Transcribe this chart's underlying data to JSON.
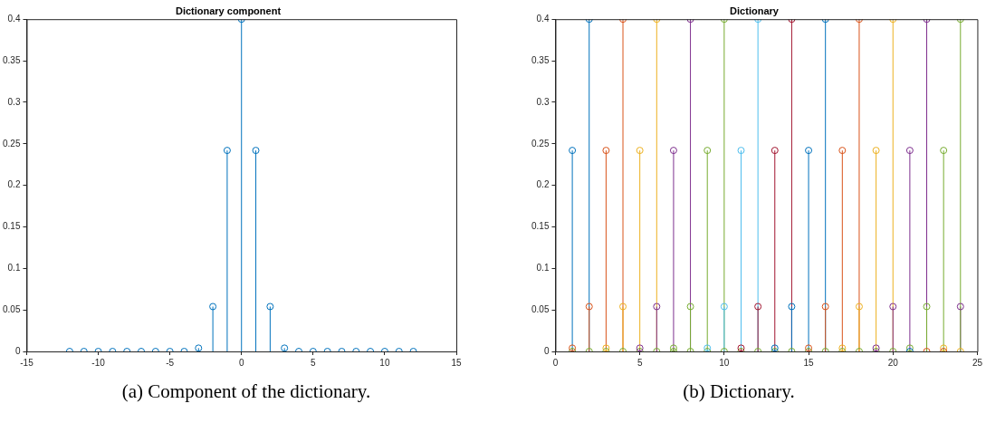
{
  "chart_data": [
    {
      "type": "lollipop",
      "title": "Dictionary component",
      "x": [
        -12,
        -11,
        -10,
        -9,
        -8,
        -7,
        -6,
        -5,
        -4,
        -3,
        -2,
        -1,
        0,
        1,
        2,
        3,
        4,
        5,
        6,
        7,
        8,
        9,
        10,
        11,
        12
      ],
      "values": [
        0,
        0,
        0,
        0,
        0,
        0,
        0,
        0,
        0,
        0.004,
        0.054,
        0.242,
        0.4,
        0.242,
        0.054,
        0.004,
        0,
        0,
        0,
        0,
        0,
        0,
        0,
        0,
        0
      ],
      "color": "#0072bd",
      "marker": "circle",
      "grid": false,
      "legend": false,
      "xlim": [
        -15,
        15
      ],
      "xticks": [
        -15,
        -10,
        -5,
        0,
        5,
        10,
        15
      ],
      "ylim": [
        0,
        0.4
      ],
      "yticks": [
        0,
        0.05,
        0.1,
        0.15,
        0.2,
        0.25,
        0.3,
        0.35,
        0.4
      ],
      "annotations": [
        "(a) Component of the dictionary."
      ]
    },
    {
      "type": "lollipop",
      "title": "Dictionary",
      "x": [
        1,
        2,
        3,
        4,
        5,
        6,
        7,
        8,
        9,
        10,
        11,
        12,
        13,
        14,
        15,
        16,
        17,
        18,
        19,
        20,
        21,
        22,
        23,
        24
      ],
      "series": [
        {
          "color": "#0072bd",
          "values": [
            0.242,
            0.4,
            null,
            null,
            null,
            null,
            null,
            null,
            null,
            null,
            null,
            null,
            null,
            null,
            null,
            null,
            null,
            null,
            null,
            null,
            null,
            null,
            null,
            null
          ]
        },
        {
          "color": "#d95319",
          "values": [
            0.004,
            0.054,
            0.242,
            0.4,
            null,
            null,
            null,
            null,
            null,
            null,
            null,
            null,
            null,
            null,
            null,
            null,
            null,
            null,
            null,
            null,
            null,
            null,
            null,
            null
          ]
        },
        {
          "color": "#edb120",
          "values": [
            null,
            null,
            0.004,
            0.054,
            0.242,
            0.4,
            null,
            null,
            null,
            null,
            null,
            null,
            null,
            null,
            null,
            null,
            null,
            null,
            null,
            null,
            null,
            null,
            null,
            null
          ]
        },
        {
          "color": "#7e2f8e",
          "values": [
            null,
            null,
            null,
            null,
            0.004,
            0.054,
            0.242,
            0.4,
            null,
            null,
            null,
            null,
            null,
            null,
            null,
            null,
            null,
            null,
            null,
            null,
            null,
            null,
            null,
            null
          ]
        },
        {
          "color": "#77ac30",
          "values": [
            null,
            null,
            null,
            null,
            null,
            null,
            0.004,
            0.054,
            0.242,
            0.4,
            null,
            null,
            null,
            null,
            null,
            null,
            null,
            null,
            null,
            null,
            null,
            null,
            null,
            null
          ]
        },
        {
          "color": "#4dbeee",
          "values": [
            null,
            null,
            null,
            null,
            null,
            null,
            null,
            null,
            0.004,
            0.054,
            0.242,
            0.4,
            null,
            null,
            null,
            null,
            null,
            null,
            null,
            null,
            null,
            null,
            null,
            null
          ]
        },
        {
          "color": "#a2142f",
          "values": [
            null,
            null,
            null,
            null,
            null,
            null,
            null,
            null,
            null,
            null,
            0.004,
            0.054,
            0.242,
            0.4,
            null,
            null,
            null,
            null,
            null,
            null,
            null,
            null,
            null,
            null
          ]
        },
        {
          "color": "#0072bd",
          "values": [
            null,
            null,
            null,
            null,
            null,
            null,
            null,
            null,
            null,
            null,
            null,
            null,
            0.004,
            0.054,
            0.242,
            0.4,
            null,
            null,
            null,
            null,
            0,
            null,
            null,
            null
          ]
        },
        {
          "color": "#d95319",
          "values": [
            null,
            null,
            null,
            null,
            null,
            null,
            null,
            null,
            null,
            null,
            null,
            null,
            null,
            null,
            0.004,
            0.054,
            0.242,
            0.4,
            null,
            null,
            null,
            0,
            0,
            null
          ]
        },
        {
          "color": "#edb120",
          "values": [
            null,
            null,
            null,
            null,
            null,
            null,
            null,
            null,
            null,
            null,
            null,
            null,
            null,
            null,
            null,
            null,
            0.004,
            0.054,
            0.242,
            0.4,
            null,
            null,
            0.004,
            0
          ]
        },
        {
          "color": "#7e2f8e",
          "values": [
            null,
            null,
            null,
            null,
            null,
            null,
            null,
            null,
            null,
            null,
            null,
            null,
            null,
            null,
            null,
            null,
            null,
            null,
            0.004,
            0.054,
            0.242,
            0.4,
            null,
            0.054
          ]
        },
        {
          "color": "#77ac30",
          "values": [
            0,
            0,
            0,
            0,
            0,
            0,
            0,
            0,
            0,
            0,
            0,
            0,
            0,
            0,
            0,
            0,
            0,
            0,
            0,
            0,
            0.004,
            0.054,
            0.242,
            0.4
          ]
        }
      ],
      "marker": "circle",
      "grid": false,
      "legend": false,
      "xlim": [
        0,
        25
      ],
      "xticks": [
        0,
        5,
        10,
        15,
        20,
        25
      ],
      "ylim": [
        0,
        0.4
      ],
      "yticks": [
        0,
        0.05,
        0.1,
        0.15,
        0.2,
        0.25,
        0.3,
        0.35,
        0.4
      ],
      "annotations": [
        "(b) Dictionary."
      ]
    }
  ]
}
